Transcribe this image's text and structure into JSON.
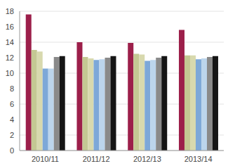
{
  "chart_data": {
    "type": "bar",
    "categories": [
      "2010/11",
      "2011/12",
      "2012/13",
      "2013/14"
    ],
    "series": [
      {
        "color": "#9c1f4a",
        "values": [
          17.6,
          14.0,
          13.9,
          15.6
        ]
      },
      {
        "color": "#c4c893",
        "values": [
          13.0,
          12.1,
          12.5,
          12.3
        ]
      },
      {
        "color": "#d8d9ae",
        "values": [
          12.8,
          11.9,
          12.4,
          12.3
        ]
      },
      {
        "color": "#7da8d8",
        "values": [
          10.6,
          11.7,
          11.6,
          11.8
        ]
      },
      {
        "color": "#bcd5ec",
        "values": [
          10.6,
          11.8,
          11.7,
          11.9
        ]
      },
      {
        "color": "#8a8a8a",
        "values": [
          12.1,
          12.0,
          12.0,
          12.1
        ]
      },
      {
        "color": "#151515",
        "values": [
          12.2,
          12.2,
          12.2,
          12.2
        ]
      }
    ],
    "ylim": [
      0,
      18
    ],
    "yticks": [
      0,
      2,
      4,
      6,
      8,
      10,
      12,
      14,
      16,
      18
    ],
    "grid": true
  }
}
